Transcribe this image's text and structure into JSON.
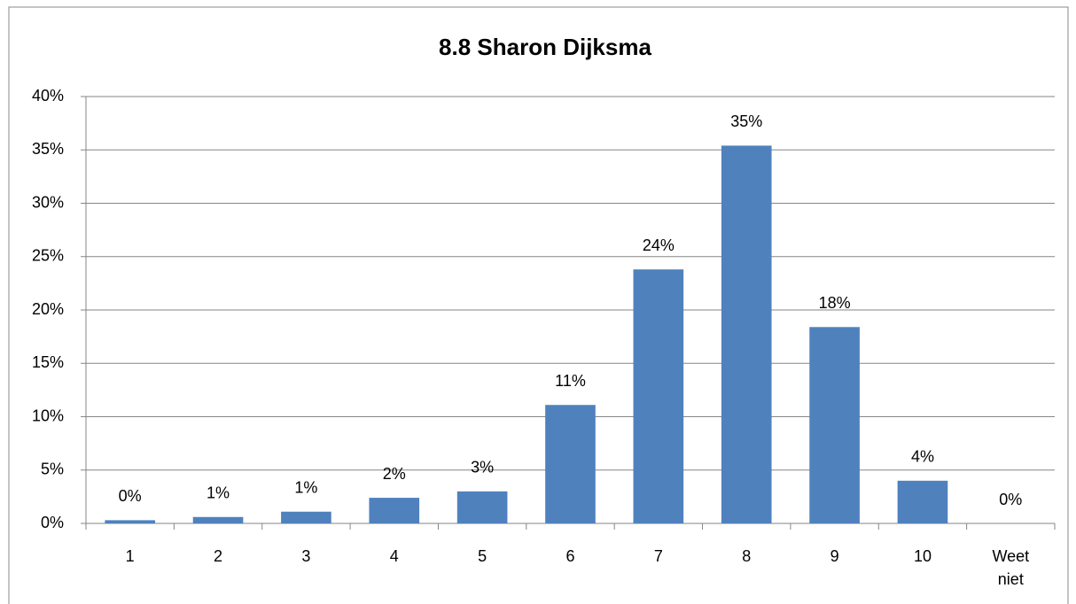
{
  "chart_data": {
    "type": "bar",
    "title": "8.8 Sharon Dijksma",
    "categories": [
      "1",
      "2",
      "3",
      "4",
      "5",
      "6",
      "7",
      "8",
      "9",
      "10",
      "Weet niet"
    ],
    "values": [
      0.3,
      0.6,
      1.1,
      2.4,
      3,
      11.1,
      23.8,
      35.4,
      18.4,
      4,
      0
    ],
    "value_labels": [
      "0%",
      "1%",
      "1%",
      "2%",
      "3%",
      "11%",
      "24%",
      "35%",
      "18%",
      "4%",
      "0%"
    ],
    "color": "#4f81bd",
    "ylim": [
      0,
      40
    ],
    "yticks": [
      {
        "value": 0,
        "label": "0%"
      },
      {
        "value": 5,
        "label": "5%"
      },
      {
        "value": 10,
        "label": "10%"
      },
      {
        "value": 15,
        "label": "15%"
      },
      {
        "value": 20,
        "label": "20%"
      },
      {
        "value": 25,
        "label": "25%"
      },
      {
        "value": 30,
        "label": "30%"
      },
      {
        "value": 35,
        "label": "35%"
      },
      {
        "value": 40,
        "label": "40%"
      }
    ],
    "grid": true
  }
}
